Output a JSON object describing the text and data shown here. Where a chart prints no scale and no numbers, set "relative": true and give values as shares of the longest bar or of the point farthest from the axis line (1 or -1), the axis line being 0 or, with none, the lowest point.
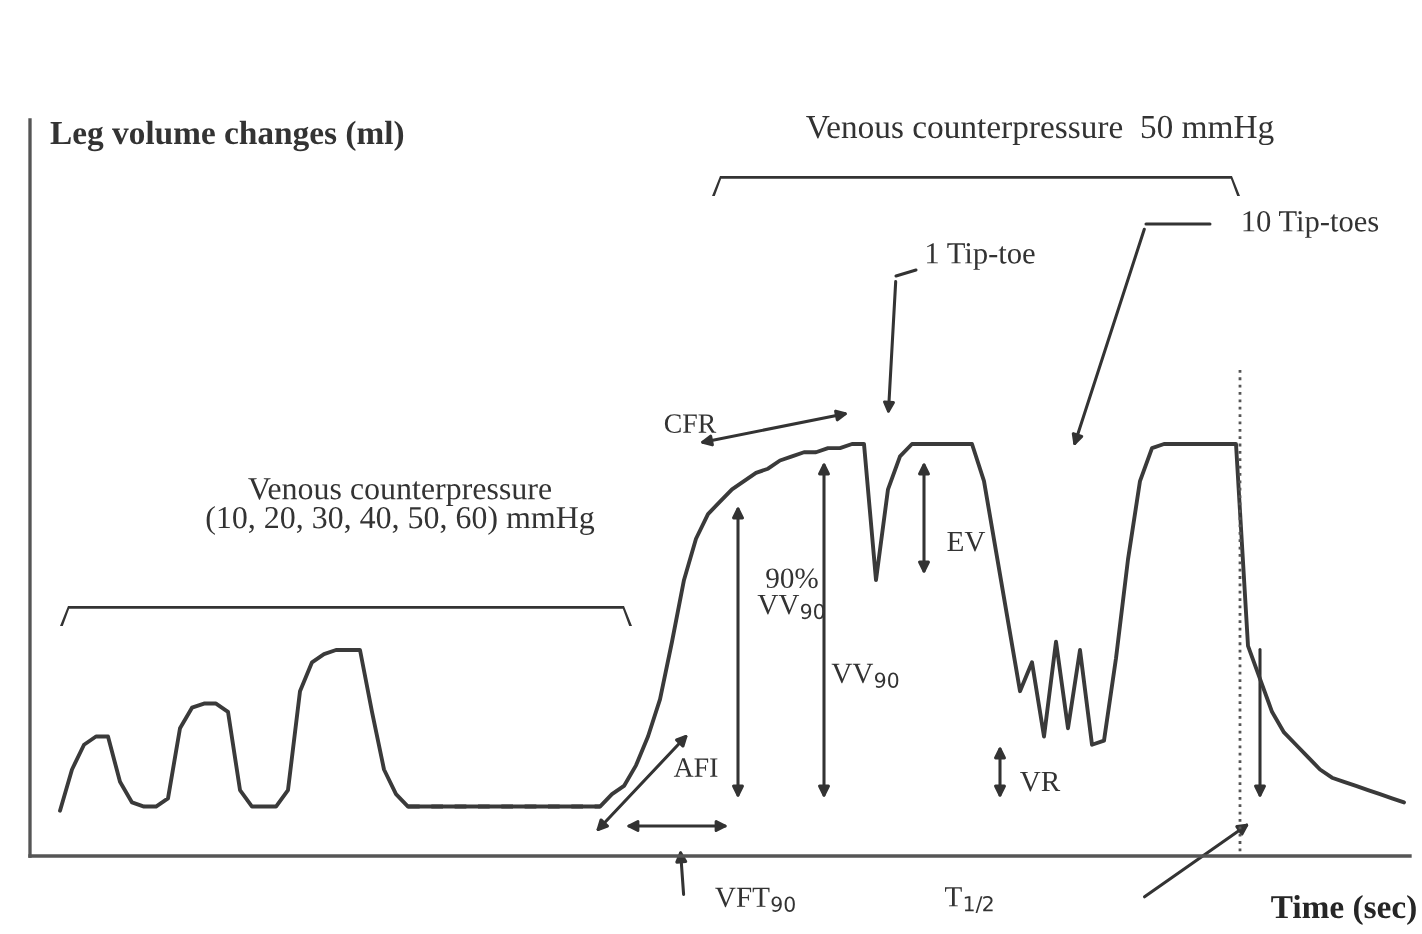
{
  "chart_data": {
    "type": "line",
    "relative": true,
    "xlabel": "Time (sec)",
    "annotations": [
      "Leg volume changes (ml)",
      "Venous counterpressure\n(10, 20, 30, 40, 50, 60) mmHg",
      "Venous counterpressure  50 mmHg",
      "1 Tip-toe",
      "10 Tip-toes",
      "CFR",
      "90%\nVV$_{90}$",
      "VV$_{90}$",
      "EV",
      "AFI",
      "VR",
      "VFT$_{90}$",
      "T$_{1/2}$"
    ],
    "categories": [
      null,
      null,
      null,
      null,
      null,
      null,
      null,
      null,
      null,
      null,
      null,
      null,
      null,
      null,
      null,
      null,
      null,
      null,
      null,
      null,
      null,
      null,
      null,
      null,
      null,
      null,
      null,
      null,
      null,
      null,
      null,
      null,
      null,
      null,
      null,
      null,
      null,
      null,
      null,
      null,
      null,
      null,
      null,
      null,
      null,
      null,
      null,
      null,
      null,
      null,
      null,
      null,
      null,
      null,
      null,
      null,
      null,
      null,
      null,
      null,
      null,
      null,
      null,
      null,
      null,
      null,
      null,
      null,
      null,
      null,
      null,
      null,
      null,
      null,
      null,
      null,
      null,
      null,
      null,
      null,
      null,
      null,
      null,
      null,
      null,
      null,
      null,
      null,
      null,
      null,
      null,
      null,
      null,
      null,
      null,
      null,
      null,
      null,
      null,
      null,
      null,
      null,
      null,
      null,
      null,
      null,
      null,
      null,
      null,
      null,
      null,
      null,
      null
    ],
    "marker": "none",
    "series": [
      {
        "color": "#3a3a3a",
        "line_style": "solid",
        "values": [
          0.11,
          0.21,
          0.27,
          0.29,
          0.29,
          0.18,
          0.13,
          0.12,
          0.12,
          0.14,
          0.31,
          0.36,
          0.37,
          0.37,
          0.35,
          0.16,
          0.12,
          0.12,
          0.12,
          0.16,
          0.4,
          0.47,
          0.49,
          0.5,
          0.5,
          0.5,
          0.35,
          0.21,
          0.15,
          0.12,
          null,
          null,
          null,
          null,
          null,
          null,
          null,
          null,
          null,
          null,
          null,
          null,
          null,
          null,
          null,
          0.12,
          0.15,
          0.17,
          0.22,
          0.29,
          0.38,
          0.52,
          0.67,
          0.77,
          0.83,
          0.86,
          0.89,
          0.91,
          0.93,
          0.94,
          0.96,
          0.97,
          0.98,
          0.98,
          0.99,
          0.99,
          1.0,
          1.0,
          0.67,
          0.89,
          0.97,
          1.0,
          1.0,
          1.0,
          1.0,
          1.0,
          1.0,
          0.91,
          0.74,
          0.57,
          0.4,
          0.47,
          0.29,
          0.52,
          0.31,
          0.5,
          0.27,
          0.28,
          0.48,
          0.72,
          0.91,
          0.99,
          1.0,
          1.0,
          1.0,
          1.0,
          1.0,
          1.0,
          1.0,
          0.51,
          0.43,
          0.35,
          0.3,
          0.27,
          0.24,
          0.21,
          0.19,
          0.18,
          0.17,
          0.16,
          0.15,
          0.14,
          0.13
        ]
      },
      {
        "color": "#3a3a3a",
        "line_style": "dashed",
        "values": [
          null,
          null,
          null,
          null,
          null,
          null,
          null,
          null,
          null,
          null,
          null,
          null,
          null,
          null,
          null,
          null,
          null,
          null,
          null,
          null,
          null,
          null,
          null,
          null,
          null,
          null,
          null,
          null,
          null,
          0.12,
          0.12,
          0.12,
          0.12,
          0.12,
          0.12,
          0.12,
          0.12,
          0.12,
          0.12,
          0.12,
          0.12,
          0.12,
          0.12,
          0.12,
          0.12,
          0.12,
          null,
          null,
          null,
          null,
          null,
          null,
          null,
          null,
          null,
          null,
          null,
          null,
          null,
          null,
          null,
          null,
          null,
          null,
          null,
          null,
          null,
          null,
          null,
          null,
          null,
          null,
          null,
          null,
          null,
          null,
          null,
          null,
          null,
          null,
          null,
          null,
          null,
          null,
          null,
          null,
          null,
          null,
          null,
          null,
          null,
          null,
          null,
          null,
          null,
          null,
          null,
          null,
          null,
          null,
          null,
          null,
          null,
          null,
          null,
          null,
          null,
          null,
          null,
          null,
          null,
          null,
          null
        ]
      }
    ]
  }
}
